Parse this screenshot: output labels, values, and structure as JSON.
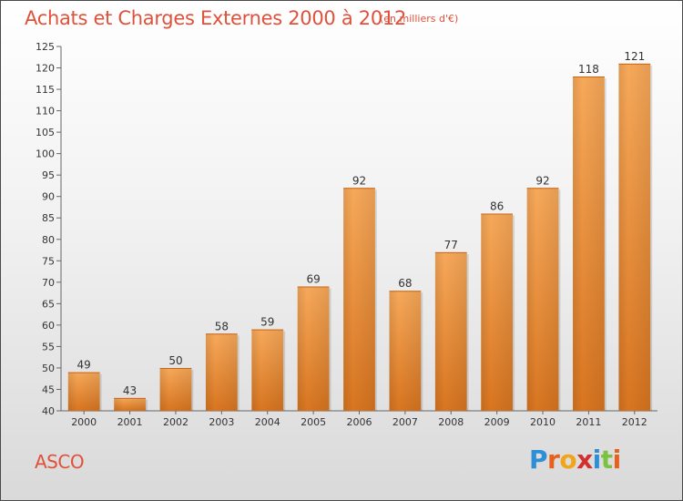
{
  "header": {
    "title": "Achats et Charges Externes 2000 à 2012",
    "unit": "(en milliers d'€)"
  },
  "footer": {
    "commune": "ASCO",
    "brand": "Proxiti"
  },
  "colors": {
    "title": "#e0513b",
    "bar_light": "#f7a95a",
    "bar_dark": "#d87520",
    "brand_letters": [
      "#2d8fd6",
      "#e8601c",
      "#f2a41a",
      "#d32f2f",
      "#2d8fd6",
      "#7cc242",
      "#e8601c"
    ]
  },
  "chart_data": {
    "type": "bar",
    "title": "Achats et Charges Externes 2000 à 2012",
    "subtitle": "(en milliers d'€)",
    "xlabel": "",
    "ylabel": "",
    "categories": [
      "2000",
      "2001",
      "2002",
      "2003",
      "2004",
      "2005",
      "2006",
      "2007",
      "2008",
      "2009",
      "2010",
      "2011",
      "2012"
    ],
    "values": [
      49,
      43,
      50,
      58,
      59,
      69,
      92,
      68,
      77,
      86,
      92,
      118,
      121
    ],
    "ylim": [
      40,
      125
    ],
    "yticks": [
      40,
      45,
      50,
      55,
      60,
      65,
      70,
      75,
      80,
      85,
      90,
      95,
      100,
      105,
      110,
      115,
      120,
      125
    ],
    "grid": false,
    "legend": "none",
    "data_labels": true
  }
}
